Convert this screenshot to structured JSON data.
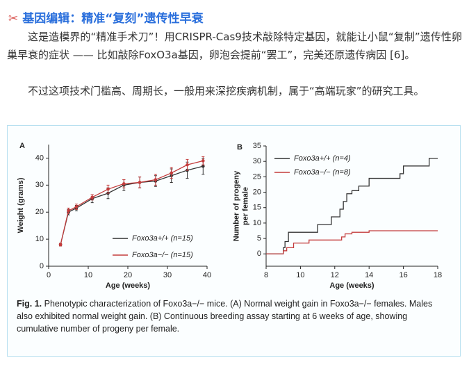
{
  "heading": "基因编辑：精准“复刻”遗传性早衰",
  "paragraphs": [
    "这是造模界的“精准手术刀”！用CRISPR-Cas9技术敲除特定基因，就能让小鼠“复制”遗传性卵巢早衰的症状 —— 比如敲除FoxO3a基因，卵泡会提前“罢工”，完美还原遗传病因 [6]。",
    "不过这项技术门槛高、周期长，一般用来深挖疾病机制，属于“高端玩家”的研究工具。"
  ],
  "caption": {
    "label": "Fig. 1.",
    "text": "Phenotypic characterization of Foxo3a−/− mice. (A) Normal weight gain in Foxo3a−/− females. Males also exhibited normal weight gain. (B) Continuous breeding assay starting at 6 weeks of age, showing cumulative number of progeny per female."
  },
  "chart_data": [
    {
      "type": "line",
      "panel": "A",
      "xlabel": "Age (weeks)",
      "ylabel": [
        "Weight (grams)"
      ],
      "x": [
        3,
        5,
        7,
        11,
        15,
        19,
        23,
        27,
        31,
        35,
        39
      ],
      "xlim": [
        0,
        40
      ],
      "xticks": [
        0,
        10,
        20,
        30,
        40
      ],
      "ylim": [
        0,
        45
      ],
      "yticks": [
        0,
        10,
        20,
        30,
        40
      ],
      "markers": true,
      "legend": "lower right",
      "series": [
        {
          "name": "Foxo3a+/+ (n=15)",
          "color": "#333333",
          "values": [
            8,
            20,
            21.5,
            25,
            27,
            30,
            31,
            31.5,
            33.5,
            35.5,
            37
          ],
          "errors": [
            0.5,
            1,
            1,
            1.5,
            2,
            2,
            2,
            2,
            2.5,
            3,
            3
          ]
        },
        {
          "name": "Foxo3a−/− (n=15)",
          "color": "#c43c3c",
          "values": [
            8,
            20.5,
            22,
            25.5,
            28.5,
            30.5,
            31,
            32,
            34.5,
            37.5,
            39
          ],
          "errors": [
            0.5,
            1,
            1,
            1,
            1.5,
            1.5,
            2,
            2,
            2,
            2,
            1.5
          ]
        }
      ]
    },
    {
      "type": "line",
      "panel": "B",
      "xlabel": "Age (weeks)",
      "ylabel": [
        "Number of progeny",
        "per female"
      ],
      "xlim": [
        8,
        18
      ],
      "xticks": [
        8,
        10,
        12,
        14,
        16,
        18
      ],
      "ylim": [
        -4,
        35
      ],
      "yticks": [
        0,
        5,
        10,
        15,
        20,
        25,
        30,
        35
      ],
      "step": "post",
      "legend": "upper left",
      "series": [
        {
          "name": "Foxo3a+/+ (n=4)",
          "color": "#333333",
          "x": [
            8,
            9,
            9.1,
            9.3,
            11,
            11.8,
            12.3,
            12.5,
            12.7,
            13,
            13.4,
            14,
            15.8,
            16,
            17.5,
            18
          ],
          "values": [
            0,
            2,
            4,
            7,
            9.5,
            12,
            14.5,
            17,
            19.5,
            20.5,
            22,
            24.5,
            26,
            28.5,
            31,
            31
          ]
        },
        {
          "name": "Foxo3a−/− (n=8)",
          "color": "#c43c3c",
          "x": [
            8,
            9,
            9.2,
            9.6,
            10.5,
            12.4,
            12.6,
            13,
            14,
            18
          ],
          "values": [
            0,
            1,
            2,
            3.5,
            4.5,
            5.5,
            6.5,
            7,
            7.5,
            7.5
          ]
        }
      ]
    }
  ]
}
